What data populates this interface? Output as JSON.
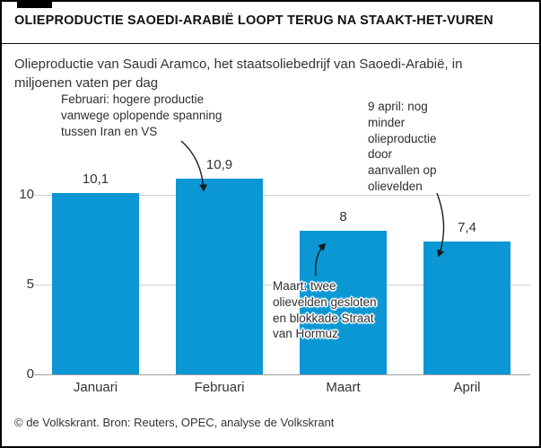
{
  "header": {
    "title": "OLIEPRODUCTIE SAOEDI-ARABIË LOOPT TERUG NA STAAKT-HET-VUREN"
  },
  "subtitle": {
    "text": "Olieproductie van Saudi Aramco, het staatsoliebedrijf van Saoedi-Arabië, in\nmiljoenen vaten per dag"
  },
  "footer": {
    "credit": "© de Volkskrant. Bron: Reuters, OPEC, analyse de Volkskrant"
  },
  "colors": {
    "bar_blue": "#0a97d4",
    "grid_line": "#cfcfcf",
    "axis_line": "#9e9e9e",
    "body_text": "#333333",
    "title_text": "#111111",
    "annotation_text": "#2e2e2e",
    "arrow": "#1a1a1a"
  },
  "chart_data": {
    "type": "bar",
    "title": "OLIEPRODUCTIE SAOEDI-ARABIË LOOPT TERUG NA STAAKT-HET-VUREN",
    "subtitle": "Olieproductie van Saudi Aramco, het staatsoliebedrijf van Saoedi-Arabië, in miljoenen vaten per dag",
    "unit": "miljoenen vaten per dag",
    "categories": [
      "Januari",
      "Februari",
      "Maart",
      "April"
    ],
    "values": [
      10.1,
      10.9,
      8,
      7.4
    ],
    "value_labels": [
      "10,1",
      "10,9",
      "8",
      "7,4"
    ],
    "yticks": [
      0,
      5,
      10
    ],
    "ylim": [
      0,
      11.5
    ],
    "grid": "horizontal-light",
    "legend": "none",
    "annotations": [
      {
        "id": "februari",
        "target": "Februari",
        "text": "Februari: hogere productie\nvanwege oplopende spanning\ntussen Iran en VS"
      },
      {
        "id": "april",
        "target": "April",
        "text": "9 april: nog\nminder\nolieproductie\ndoor\naanvallen op\nolievelden"
      },
      {
        "id": "maart",
        "target": "Maart",
        "text": "Maart: twee\nolievelden gesloten\nen blokkade Straat\nvan Hormuz"
      }
    ]
  }
}
